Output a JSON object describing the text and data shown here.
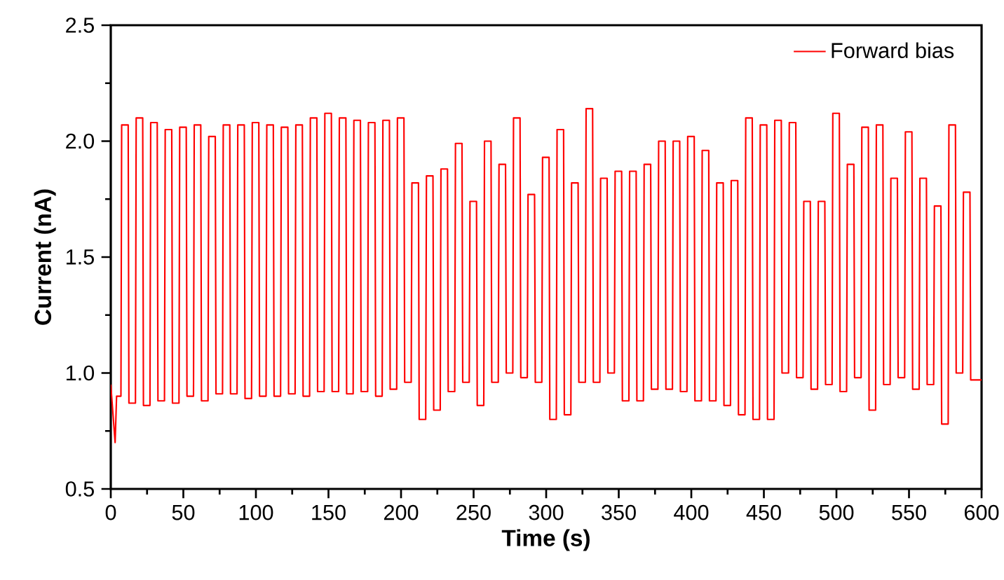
{
  "chart_data": {
    "type": "line",
    "xlabel": "Time (s)",
    "ylabel": "Current (nA)",
    "xlim": [
      0,
      600
    ],
    "xticks": [
      0,
      50,
      100,
      150,
      200,
      250,
      300,
      350,
      400,
      450,
      500,
      550,
      600
    ],
    "ylim": [
      0.5,
      2.5
    ],
    "yticks": [
      {
        "value": 0.5,
        "label": "0.5"
      },
      {
        "value": 1.0,
        "label": "1.0"
      },
      {
        "value": 1.5,
        "label": "1.5"
      },
      {
        "value": 2.0,
        "label": "2.0"
      },
      {
        "value": 2.5,
        "label": "2.5"
      }
    ],
    "legend": "top right",
    "x": [
      0,
      3,
      4,
      7,
      7.5,
      12,
      12.5,
      17,
      17.5,
      22,
      22.5,
      27,
      27.5,
      32,
      32.5,
      37,
      37.5,
      42,
      42.5,
      47,
      47.5,
      52,
      52.5,
      57,
      57.5,
      62,
      62.5,
      67,
      67.5,
      72,
      72.5,
      77,
      77.5,
      82,
      82.5,
      87,
      87.5,
      92,
      92.5,
      97,
      97.5,
      102,
      102.5,
      107,
      107.5,
      112,
      112.5,
      117,
      117.5,
      122,
      122.5,
      127,
      127.5,
      132,
      132.5,
      137,
      137.5,
      142,
      142.5,
      147,
      147.5,
      152,
      152.5,
      157,
      157.5,
      162,
      162.5,
      167,
      167.5,
      172,
      172.5,
      177,
      177.5,
      182,
      182.5,
      187,
      187.5,
      192,
      192.5,
      197,
      197.5,
      202,
      202.5,
      207,
      207.5,
      212,
      212.5,
      217,
      217.5,
      222,
      222.5,
      227,
      227.5,
      232,
      232.5,
      237,
      237.5,
      242,
      242.5,
      247,
      247.5,
      252,
      252.5,
      257,
      257.5,
      262,
      262.5,
      267,
      267.5,
      272,
      272.5,
      277,
      277.5,
      282,
      282.5,
      287,
      287.5,
      292,
      292.5,
      297,
      297.5,
      302,
      302.5,
      307,
      307.5,
      312,
      312.5,
      317,
      317.5,
      322,
      322.5,
      327,
      327.5,
      332,
      332.5,
      337,
      337.5,
      342,
      342.5,
      347,
      347.5,
      352,
      352.5,
      357,
      357.5,
      362,
      362.5,
      367,
      367.5,
      372,
      372.5,
      377,
      377.5,
      382,
      382.5,
      387,
      387.5,
      392,
      392.5,
      397,
      397.5,
      402,
      402.5,
      407,
      407.5,
      412,
      412.5,
      417,
      417.5,
      422,
      422.5,
      427,
      427.5,
      432,
      432.5,
      437,
      437.5,
      442,
      442.5,
      447,
      447.5,
      452,
      452.5,
      457,
      457.5,
      462,
      462.5,
      467,
      467.5,
      472,
      472.5,
      477,
      477.5,
      482,
      482.5,
      487,
      487.5,
      492,
      492.5,
      497,
      497.5,
      502,
      502.5,
      507,
      507.5,
      512,
      512.5,
      517,
      517.5,
      522,
      522.5,
      527,
      527.5,
      532,
      532.5,
      537,
      537.5,
      542,
      542.5,
      547,
      547.5,
      552,
      552.5,
      557,
      557.5,
      562,
      562.5,
      567,
      567.5,
      572,
      572.5,
      577,
      577.5,
      582,
      582.5,
      587,
      587.5,
      592,
      592.5,
      600
    ],
    "series": [
      {
        "name": "Forward bias",
        "color": "#ff0000",
        "values": [
          0.95,
          0.7,
          0.9,
          0.9,
          2.07,
          2.07,
          0.87,
          0.87,
          2.1,
          2.1,
          0.86,
          0.86,
          2.08,
          2.08,
          0.88,
          0.88,
          2.05,
          2.05,
          0.87,
          0.87,
          2.06,
          2.06,
          0.9,
          0.9,
          2.07,
          2.07,
          0.88,
          0.88,
          2.02,
          2.02,
          0.91,
          0.91,
          2.07,
          2.07,
          0.91,
          0.91,
          2.07,
          2.07,
          0.89,
          0.89,
          2.08,
          2.08,
          0.9,
          0.9,
          2.07,
          2.07,
          0.9,
          0.9,
          2.06,
          2.06,
          0.91,
          0.91,
          2.07,
          2.07,
          0.9,
          0.9,
          2.1,
          2.1,
          0.92,
          0.92,
          2.12,
          2.12,
          0.92,
          0.92,
          2.1,
          2.1,
          0.91,
          0.91,
          2.09,
          2.09,
          0.92,
          0.92,
          2.08,
          2.08,
          0.9,
          0.9,
          2.09,
          2.09,
          0.93,
          0.93,
          2.1,
          2.1,
          0.96,
          0.96,
          1.82,
          1.82,
          0.8,
          0.8,
          1.85,
          1.85,
          0.84,
          0.84,
          1.88,
          1.88,
          0.92,
          0.92,
          1.99,
          1.99,
          0.96,
          0.96,
          1.74,
          1.74,
          0.86,
          0.86,
          2.0,
          2.0,
          0.96,
          0.96,
          1.9,
          1.9,
          1.0,
          1.0,
          2.1,
          2.1,
          0.98,
          0.98,
          1.77,
          1.77,
          0.96,
          0.96,
          1.93,
          1.93,
          0.8,
          0.8,
          2.05,
          2.05,
          0.82,
          0.82,
          1.82,
          1.82,
          0.96,
          0.96,
          2.14,
          2.14,
          0.96,
          0.96,
          1.84,
          1.84,
          1.0,
          1.0,
          1.87,
          1.87,
          0.88,
          0.88,
          1.87,
          1.87,
          0.88,
          0.88,
          1.9,
          1.9,
          0.93,
          0.93,
          2.0,
          2.0,
          0.93,
          0.93,
          2.0,
          2.0,
          0.92,
          0.92,
          2.02,
          2.02,
          0.88,
          0.88,
          1.96,
          1.96,
          0.88,
          0.88,
          1.82,
          1.82,
          0.86,
          0.86,
          1.83,
          1.83,
          0.82,
          0.82,
          2.1,
          2.1,
          0.8,
          0.8,
          2.07,
          2.07,
          0.8,
          0.8,
          2.09,
          2.09,
          1.0,
          1.0,
          2.08,
          2.08,
          0.98,
          0.98,
          1.74,
          1.74,
          0.93,
          0.93,
          1.74,
          1.74,
          0.95,
          0.95,
          2.12,
          2.12,
          0.92,
          0.92,
          1.9,
          1.9,
          0.98,
          0.98,
          2.06,
          2.06,
          0.84,
          0.84,
          2.07,
          2.07,
          0.95,
          0.95,
          1.84,
          1.84,
          0.98,
          0.98,
          2.04,
          2.04,
          0.93,
          0.93,
          1.84,
          1.84,
          0.95,
          0.95,
          1.72,
          1.72,
          0.78,
          0.78,
          2.07,
          2.07,
          1.0,
          1.0,
          1.78,
          1.78,
          0.97,
          0.97
        ]
      }
    ]
  }
}
